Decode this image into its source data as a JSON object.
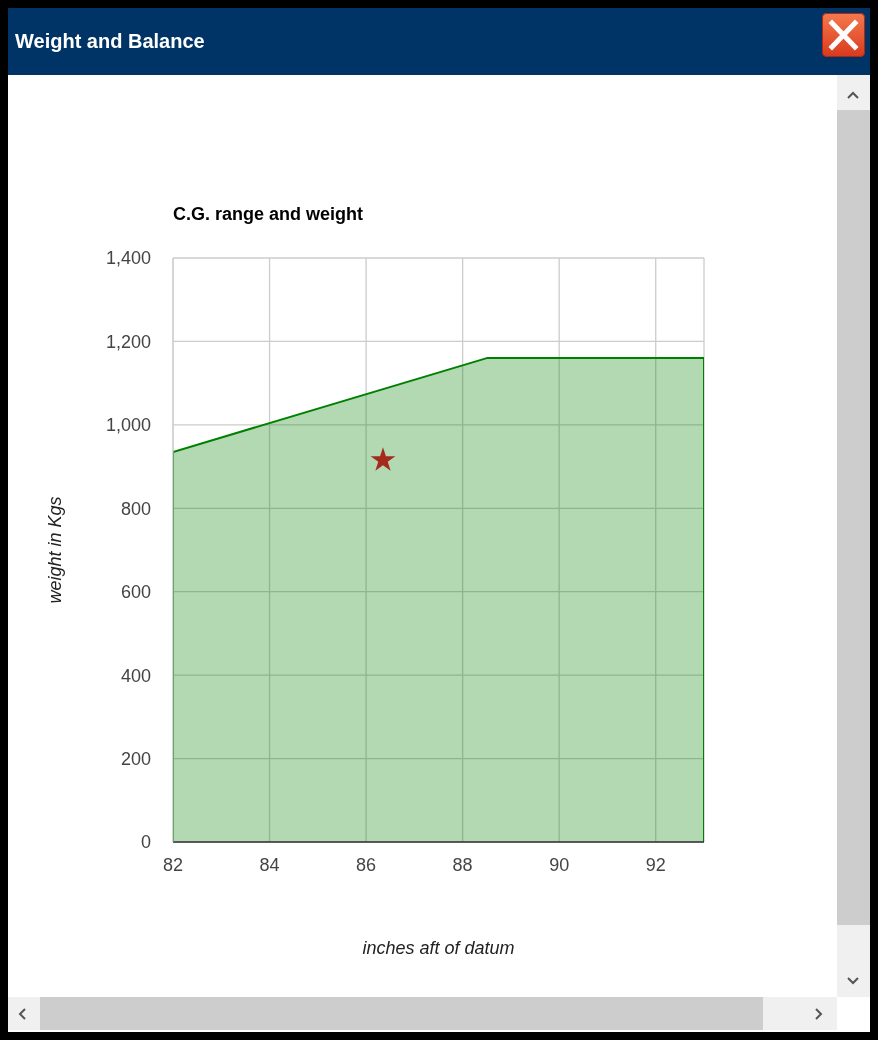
{
  "chart_data": {
    "type": "area",
    "title": "Weight and Balance",
    "subtitle": "C.G. range and weight",
    "xlabel": "inches aft of datum",
    "ylabel": "weight in Kgs",
    "series": [
      {
        "color": "#008000",
        "x": [
          82,
          82,
          88.5,
          93,
          93
        ],
        "values": [
          0,
          935,
          1160,
          1160,
          0
        ]
      },
      {
        "type": "scatter",
        "color": "#a52a1e",
        "marker": "star",
        "x": [
          86.35
        ],
        "values": [
          915
        ]
      }
    ],
    "xlim": [
      82,
      93
    ],
    "xticks": [
      82,
      84,
      86,
      88,
      90,
      92
    ],
    "ylim": [
      0,
      1400
    ],
    "yticks": [
      0,
      200,
      400,
      600,
      800,
      {
        "value": 1000,
        "label": "1,000"
      },
      {
        "value": 1200,
        "label": "1,200"
      },
      {
        "value": 1400,
        "label": "1,400"
      }
    ],
    "grid": true
  }
}
